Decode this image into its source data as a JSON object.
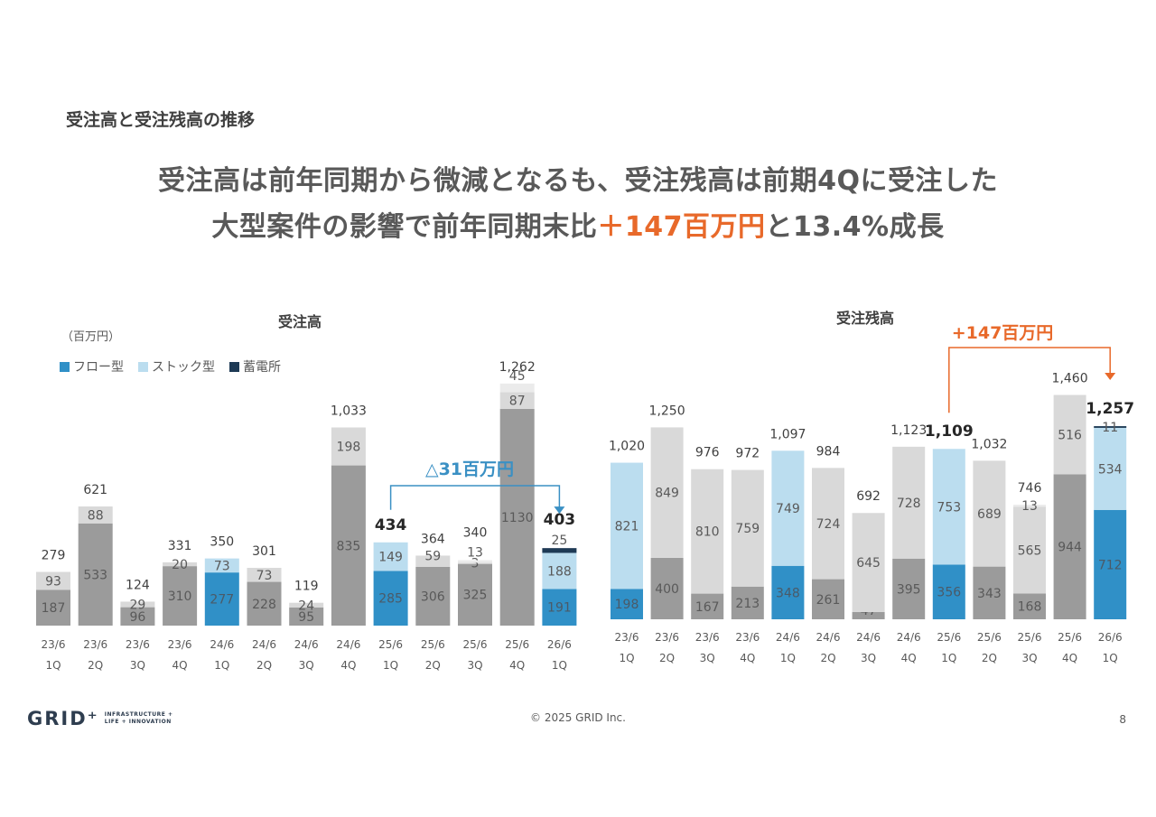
{
  "section_title": "受注高と受注残高の推移",
  "headline": {
    "line1": "受注高は前年同期から微減となるも、受注残高は前期4Qに受注した",
    "line2_a": "大型案件の影響で前年同期末比",
    "line2_accent": "＋147百万円",
    "line2_b": "と13.4%成長"
  },
  "unit_label": "（百万円）",
  "legend": [
    {
      "label": "フロー型",
      "color": "#3090C7"
    },
    {
      "label": "ストック型",
      "color": "#BBDDEF"
    },
    {
      "label": "蓄電所",
      "color": "#1E3A55"
    }
  ],
  "colors": {
    "flow": "#3090C7",
    "stock": "#BBDDEF",
    "battery": "#1E3A55",
    "past_flow": "#9B9B9B",
    "past_stock": "#D9D9D9",
    "past_battery": "#EBEBEB",
    "accent_orange": "#E8692A",
    "accent_blue": "#3A90C4"
  },
  "chart_data": [
    {
      "type": "bar",
      "stacked": true,
      "title": "受注高",
      "categories": [
        [
          "23/6",
          "1Q"
        ],
        [
          "23/6",
          "2Q"
        ],
        [
          "23/6",
          "3Q"
        ],
        [
          "23/6",
          "4Q"
        ],
        [
          "24/6",
          "1Q"
        ],
        [
          "24/6",
          "2Q"
        ],
        [
          "24/6",
          "3Q"
        ],
        [
          "24/6",
          "4Q"
        ],
        [
          "25/6",
          "1Q"
        ],
        [
          "25/6",
          "2Q"
        ],
        [
          "25/6",
          "3Q"
        ],
        [
          "25/6",
          "4Q"
        ],
        [
          "26/6",
          "1Q"
        ]
      ],
      "series": [
        {
          "name": "フロー型",
          "values": [
            187,
            533,
            96,
            310,
            277,
            228,
            95,
            835,
            285,
            306,
            325,
            1130,
            191
          ]
        },
        {
          "name": "ストック型",
          "values": [
            93,
            88,
            29,
            20,
            73,
            73,
            24,
            198,
            149,
            59,
            3,
            87,
            188
          ]
        },
        {
          "name": "蓄電所",
          "values": [
            null,
            null,
            null,
            null,
            null,
            null,
            null,
            null,
            null,
            null,
            13,
            45,
            25
          ]
        }
      ],
      "totals": [
        "279",
        "621",
        "124",
        "331",
        "350",
        "301",
        "119",
        "1,033",
        "434",
        "364",
        "340",
        "1,262",
        "403"
      ],
      "highlight_indices": [
        4,
        8,
        12
      ],
      "bold_totals": [
        8,
        12
      ],
      "ylim": [
        0,
        1300
      ],
      "annotation": {
        "text": "△31百万円",
        "from_index": 8,
        "to_index": 12
      }
    },
    {
      "type": "bar",
      "stacked": true,
      "title": "受注残高",
      "categories": [
        [
          "23/6",
          "1Q"
        ],
        [
          "23/6",
          "2Q"
        ],
        [
          "23/6",
          "3Q"
        ],
        [
          "23/6",
          "4Q"
        ],
        [
          "24/6",
          "1Q"
        ],
        [
          "24/6",
          "2Q"
        ],
        [
          "24/6",
          "3Q"
        ],
        [
          "24/6",
          "4Q"
        ],
        [
          "25/6",
          "1Q"
        ],
        [
          "25/6",
          "2Q"
        ],
        [
          "25/6",
          "3Q"
        ],
        [
          "25/6",
          "4Q"
        ],
        [
          "26/6",
          "1Q"
        ]
      ],
      "series": [
        {
          "name": "フロー型",
          "values": [
            198,
            400,
            167,
            213,
            348,
            261,
            47,
            395,
            356,
            343,
            168,
            944,
            712
          ]
        },
        {
          "name": "ストック型",
          "values": [
            821,
            849,
            810,
            759,
            749,
            724,
            645,
            728,
            753,
            689,
            565,
            516,
            534
          ]
        },
        {
          "name": "蓄電所",
          "values": [
            null,
            null,
            null,
            null,
            null,
            null,
            null,
            null,
            null,
            null,
            13,
            null,
            11
          ]
        }
      ],
      "totals": [
        "1,020",
        "1,250",
        "976",
        "972",
        "1,097",
        "984",
        "692",
        "1,123",
        "1,109",
        "1,032",
        "746",
        "1,460",
        "1,257"
      ],
      "highlight_indices": [
        0,
        4,
        8,
        12
      ],
      "bold_totals": [
        8,
        12
      ],
      "ylim": [
        0,
        1500
      ],
      "annotation": {
        "text": "+147百万円",
        "from_index": 8,
        "to_index": 12
      }
    }
  ],
  "footer": {
    "copyright": "© 2025 GRID Inc.",
    "page": "8"
  },
  "logo": {
    "mark": "GRID⁺",
    "line1": "INFRASTRUCTURE +",
    "line2": "LIFE + INNOVATION"
  }
}
